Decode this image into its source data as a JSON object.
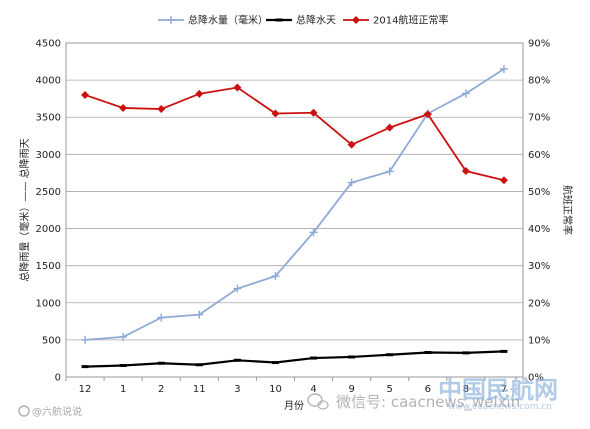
{
  "chart_data": {
    "type": "line",
    "categories": [
      "12",
      "1",
      "2",
      "11",
      "3",
      "10",
      "4",
      "9",
      "5",
      "6",
      "8",
      "7"
    ],
    "xlabel": "月份",
    "ylabel_left": "总降雨量（毫米）—— 总降雨天",
    "ylabel_right": "航班正常率",
    "ylim_left": [
      0,
      4500
    ],
    "yticks_left": [
      "0",
      "500",
      "1000",
      "1500",
      "2000",
      "2500",
      "3000",
      "3500",
      "4000",
      "4500"
    ],
    "ylim_right": [
      0,
      0.9
    ],
    "yticks_right": [
      "0%",
      "10%",
      "20%",
      "30%",
      "40%",
      "50%",
      "60%",
      "70%",
      "80%",
      "90%"
    ],
    "grid": true,
    "legend_position": "top",
    "series": [
      {
        "name": "总降水量（毫米）",
        "axis": "left",
        "color": "#8eaad6",
        "marker": "plus",
        "values": [
          500,
          540,
          800,
          840,
          1190,
          1360,
          1950,
          2620,
          2770,
          3550,
          3820,
          4150
        ]
      },
      {
        "name": "总降水天",
        "axis": "left",
        "color": "#000000",
        "marker": "dash",
        "values": [
          140,
          155,
          185,
          165,
          225,
          195,
          255,
          270,
          300,
          330,
          325,
          345
        ]
      },
      {
        "name": "2014航班正常率",
        "axis": "right",
        "color": "#cc1111",
        "marker": "diamond",
        "values": [
          0.76,
          0.725,
          0.722,
          0.763,
          0.78,
          0.71,
          0.712,
          0.626,
          0.672,
          0.708,
          0.555,
          0.53
        ]
      }
    ]
  },
  "watermarks": {
    "weibo": "@六航说说",
    "wechat": "微信号: caacnews_weixin",
    "brand": "中国民航网",
    "site": "www.caacnews.com.cn"
  }
}
